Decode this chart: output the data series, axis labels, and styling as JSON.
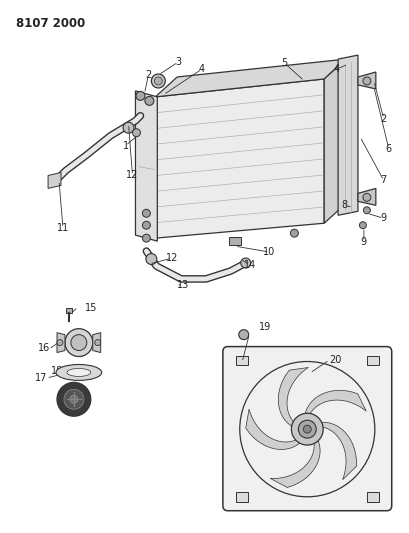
{
  "title": "8107 2000",
  "bg_color": "#ffffff",
  "line_color": "#333333",
  "text_color": "#222222",
  "title_fontsize": 8.5,
  "label_fontsize": 7.0
}
